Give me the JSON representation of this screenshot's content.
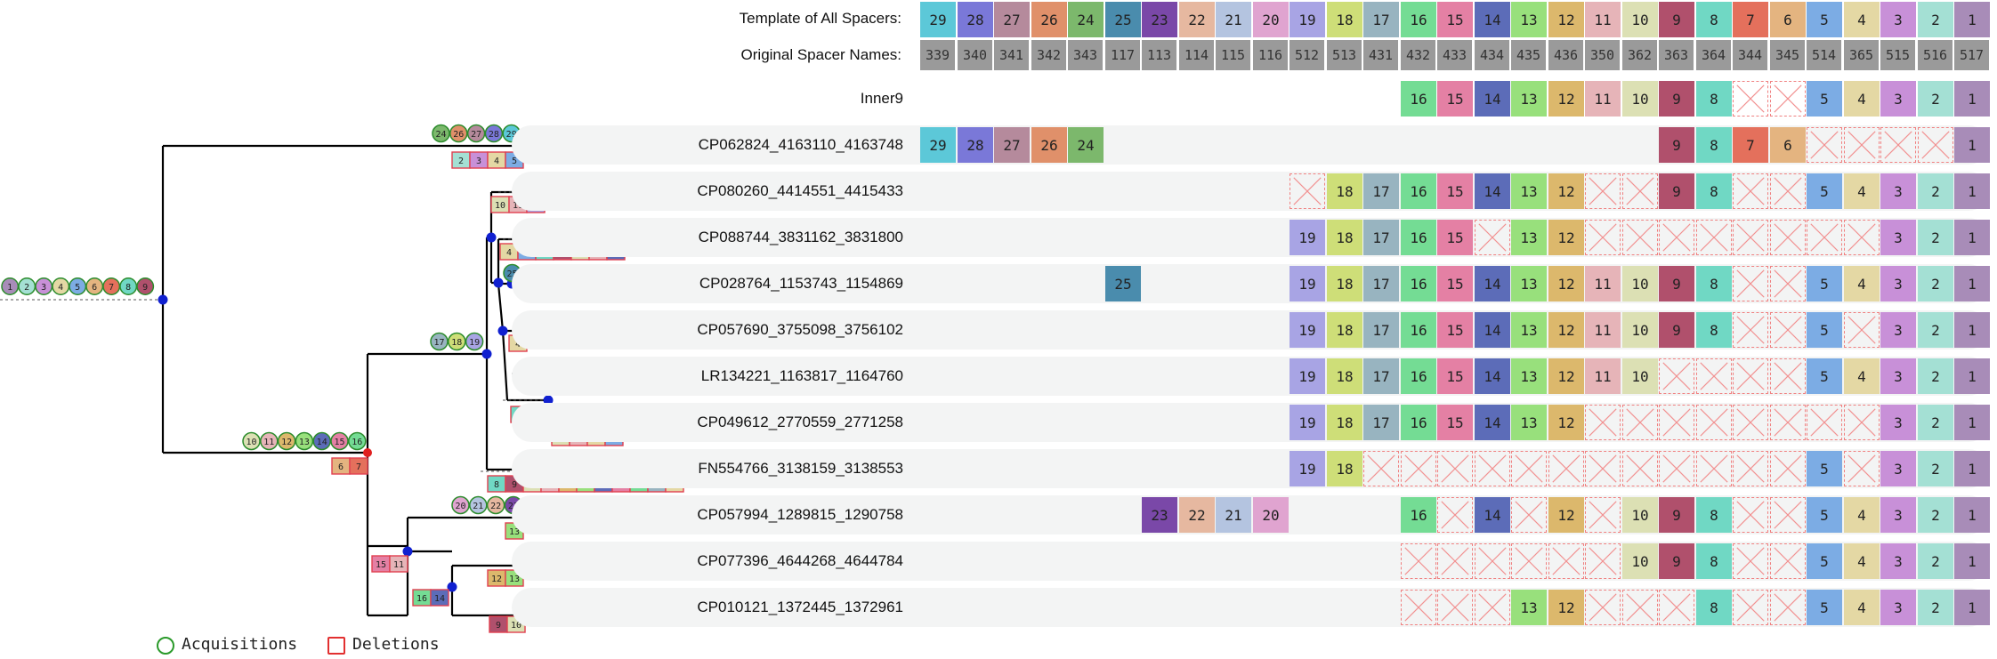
{
  "header": {
    "template_label": "Template of All Spacers:",
    "original_label": "Original Spacer Names:",
    "template": [
      "29",
      "28",
      "27",
      "26",
      "24",
      "25",
      "23",
      "22",
      "21",
      "20",
      "19",
      "18",
      "17",
      "16",
      "15",
      "14",
      "13",
      "12",
      "11",
      "10",
      "9",
      "8",
      "7",
      "6",
      "5",
      "4",
      "3",
      "2",
      "1"
    ],
    "original": [
      "339",
      "340",
      "341",
      "342",
      "343",
      "117",
      "113",
      "114",
      "115",
      "116",
      "512",
      "513",
      "431",
      "432",
      "433",
      "434",
      "435",
      "436",
      "350",
      "362",
      "363",
      "364",
      "344",
      "345",
      "514",
      "365",
      "515",
      "516",
      "517"
    ]
  },
  "colors": {
    "29": "#5cc8d8",
    "28": "#7a78d8",
    "27": "#b58a9c",
    "26": "#e0906a",
    "24": "#7cb86c",
    "25": "#4a8cad",
    "23": "#7a48a8",
    "22": "#e6b8a0",
    "21": "#b4c4e0",
    "20": "#e0a4d0",
    "19": "#a8a4e4",
    "18": "#cede78",
    "17": "#98b4c0",
    "16": "#74dc94",
    "15": "#e480a4",
    "14": "#5c6cb8",
    "13": "#98e07c",
    "12": "#dcb86c",
    "11": "#e6b4b8",
    "10": "#dce0b4",
    "9": "#b0506c",
    "8": "#70d8c4",
    "7": "#e4705c",
    "6": "#e4b480",
    "5": "#7cace4",
    "4": "#e4d8a4",
    "3": "#c890d8",
    "2": "#a4e0d4",
    "1": "#a88cb8"
  },
  "rows": [
    {
      "name": "Inner9",
      "strip": false,
      "cells": [
        "",
        "",
        "",
        "",
        "",
        "",
        "",
        "",
        "",
        "",
        "",
        "",
        "",
        "16",
        "15",
        "14",
        "13",
        "12",
        "11",
        "10",
        "9",
        "8",
        "x",
        "x",
        "5",
        "4",
        "3",
        "2",
        "1"
      ]
    },
    {
      "name": "CP062824_4163110_4163748",
      "strip": true,
      "cells": [
        "29",
        "28",
        "27",
        "26",
        "24",
        "",
        "",
        "",
        "",
        "",
        "",
        "",
        "",
        "",
        "",
        "",
        "",
        "",
        "",
        "",
        "9",
        "8",
        "7",
        "6",
        "x",
        "x",
        "x",
        "x",
        "1"
      ]
    },
    {
      "name": "CP080260_4414551_4415433",
      "strip": true,
      "cells": [
        "",
        "",
        "",
        "",
        "",
        "",
        "",
        "",
        "",
        "",
        "x",
        "18",
        "17",
        "16",
        "15",
        "14",
        "13",
        "12",
        "x",
        "x",
        "9",
        "8",
        "x",
        "x",
        "5",
        "4",
        "3",
        "2",
        "1"
      ]
    },
    {
      "name": "CP088744_3831162_3831800",
      "strip": true,
      "cells": [
        "",
        "",
        "",
        "",
        "",
        "",
        "",
        "",
        "",
        "",
        "19",
        "18",
        "17",
        "16",
        "15",
        "x",
        "13",
        "12",
        "x",
        "x",
        "x",
        "x",
        "x",
        "x",
        "x",
        "x",
        "3",
        "2",
        "1"
      ]
    },
    {
      "name": "CP028764_1153743_1154869",
      "strip": true,
      "cells": [
        "",
        "",
        "",
        "",
        "",
        "25",
        "",
        "",
        "",
        "",
        "19",
        "18",
        "17",
        "16",
        "15",
        "14",
        "13",
        "12",
        "11",
        "10",
        "9",
        "8",
        "x",
        "x",
        "5",
        "4",
        "3",
        "2",
        "1"
      ]
    },
    {
      "name": "CP057690_3755098_3756102",
      "strip": true,
      "cells": [
        "",
        "",
        "",
        "",
        "",
        "",
        "",
        "",
        "",
        "",
        "19",
        "18",
        "17",
        "16",
        "15",
        "14",
        "13",
        "12",
        "11",
        "10",
        "9",
        "8",
        "x",
        "x",
        "5",
        "x",
        "3",
        "2",
        "1"
      ]
    },
    {
      "name": "LR134221_1163817_1164760",
      "strip": true,
      "cells": [
        "",
        "",
        "",
        "",
        "",
        "",
        "",
        "",
        "",
        "",
        "19",
        "18",
        "17",
        "16",
        "15",
        "14",
        "13",
        "12",
        "11",
        "10",
        "x",
        "x",
        "x",
        "x",
        "5",
        "4",
        "3",
        "2",
        "1"
      ]
    },
    {
      "name": "CP049612_2770559_2771258",
      "strip": true,
      "cells": [
        "",
        "",
        "",
        "",
        "",
        "",
        "",
        "",
        "",
        "",
        "19",
        "18",
        "17",
        "16",
        "15",
        "14",
        "13",
        "12",
        "x",
        "x",
        "x",
        "x",
        "x",
        "x",
        "x",
        "x",
        "3",
        "2",
        "1"
      ]
    },
    {
      "name": "FN554766_3138159_3138553",
      "strip": true,
      "cells": [
        "",
        "",
        "",
        "",
        "",
        "",
        "",
        "",
        "",
        "",
        "19",
        "18",
        "x",
        "x",
        "x",
        "x",
        "x",
        "x",
        "x",
        "x",
        "x",
        "x",
        "x",
        "x",
        "5",
        "x",
        "3",
        "2",
        "1"
      ]
    },
    {
      "name": "CP057994_1289815_1290758",
      "strip": true,
      "cells": [
        "",
        "",
        "",
        "",
        "",
        "",
        "23",
        "22",
        "21",
        "20",
        "",
        "",
        "",
        "16",
        "x",
        "14",
        "x",
        "12",
        "x",
        "10",
        "9",
        "8",
        "x",
        "x",
        "5",
        "4",
        "3",
        "2",
        "1"
      ]
    },
    {
      "name": "CP077396_4644268_4644784",
      "strip": true,
      "cells": [
        "",
        "",
        "",
        "",
        "",
        "",
        "",
        "",
        "",
        "",
        "",
        "",
        "",
        "x",
        "x",
        "x",
        "x",
        "x",
        "x",
        "10",
        "9",
        "8",
        "x",
        "x",
        "5",
        "4",
        "3",
        "2",
        "1"
      ]
    },
    {
      "name": "CP010121_1372445_1372961",
      "strip": true,
      "cells": [
        "",
        "",
        "",
        "",
        "",
        "",
        "",
        "",
        "",
        "",
        "",
        "",
        "",
        "x",
        "x",
        "x",
        "13",
        "12",
        "x",
        "x",
        "x",
        "8",
        "x",
        "x",
        "5",
        "4",
        "3",
        "2",
        "1"
      ]
    }
  ],
  "tree": {
    "root_acquisitions": [
      "1",
      "2",
      "3",
      "4",
      "5",
      "6",
      "7",
      "8",
      "9"
    ],
    "groups": [
      {
        "id": "g-cp062824-acq",
        "kind": "acq",
        "items": [
          "24",
          "26",
          "27",
          "28",
          "29"
        ]
      },
      {
        "id": "g-cp062824-del",
        "kind": "del",
        "items": [
          "2",
          "3",
          "4",
          "5"
        ]
      },
      {
        "id": "g-cp080260-del",
        "kind": "del",
        "items": [
          "10",
          "11",
          "19"
        ]
      },
      {
        "id": "g-cp088744-del",
        "kind": "del",
        "items": [
          "4",
          "5",
          "8",
          "9",
          "10",
          "11",
          "14"
        ]
      },
      {
        "id": "g-cp028764-acq",
        "kind": "acq",
        "items": [
          "25"
        ]
      },
      {
        "id": "g-cp057690-del",
        "kind": "del",
        "items": [
          "4"
        ]
      },
      {
        "id": "g-clade-acq",
        "kind": "acq",
        "items": [
          "17",
          "18",
          "19"
        ]
      },
      {
        "id": "g-lr134221-del",
        "kind": "del",
        "items": [
          "8",
          "9"
        ]
      },
      {
        "id": "g-cp049612-del",
        "kind": "del",
        "items": [
          "10",
          "11",
          "4",
          "5"
        ]
      },
      {
        "id": "g-main-acq",
        "kind": "acq",
        "items": [
          "10",
          "11",
          "12",
          "13",
          "14",
          "15",
          "16"
        ]
      },
      {
        "id": "g-main-del",
        "kind": "del",
        "items": [
          "6",
          "7"
        ]
      },
      {
        "id": "g-fn554766-del",
        "kind": "del",
        "items": [
          "8",
          "9",
          "10",
          "11",
          "12",
          "13",
          "14",
          "15",
          "16",
          "17",
          "4"
        ]
      },
      {
        "id": "g-cp057994-acq",
        "kind": "acq",
        "items": [
          "20",
          "21",
          "22",
          "23"
        ]
      },
      {
        "id": "g-cp057994-del",
        "kind": "del",
        "items": [
          "13"
        ]
      },
      {
        "id": "g-lower-del",
        "kind": "del",
        "items": [
          "15",
          "11"
        ]
      },
      {
        "id": "g-cp077396-del",
        "kind": "del",
        "items": [
          "12",
          "13"
        ]
      },
      {
        "id": "g-sub-del",
        "kind": "del",
        "items": [
          "16",
          "14"
        ]
      },
      {
        "id": "g-cp010121-del",
        "kind": "del",
        "items": [
          "9",
          "10"
        ]
      }
    ]
  },
  "legend": {
    "acquisitions": "Acquisitions",
    "deletions": "Deletions"
  }
}
